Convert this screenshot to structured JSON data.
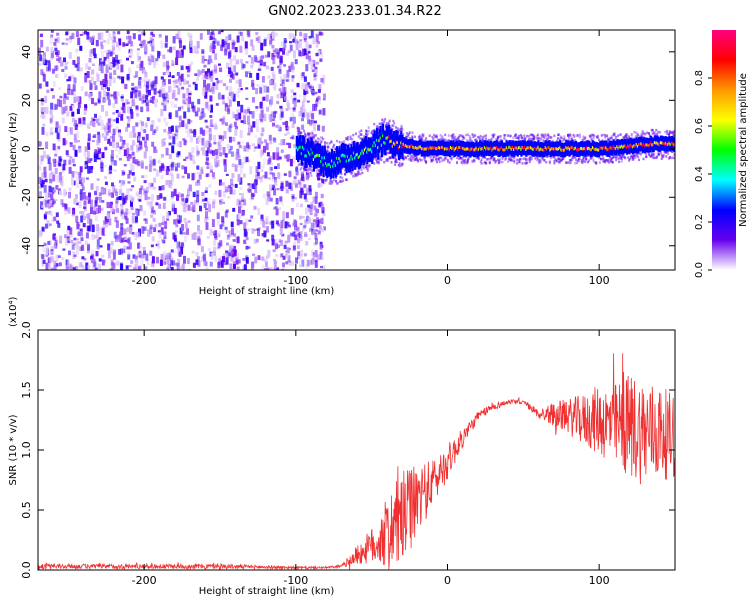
{
  "title": "GN02.2023.233.01.34.R22",
  "chart_data": [
    {
      "type": "heatmap",
      "xlabel": "Height of straight line (km)",
      "ylabel": "Frequency (Hz)",
      "xlim": [
        -270,
        150
      ],
      "ylim": [
        -50,
        49
      ],
      "x_ticks": [
        -200,
        -100,
        0,
        100
      ],
      "x_tick_labels": [
        "-200",
        "-100",
        "0",
        "100"
      ],
      "y_ticks": [
        -40,
        -20,
        0,
        20,
        40
      ],
      "y_tick_labels": [
        "-40",
        "-20",
        "0",
        "20",
        "40"
      ],
      "noise_region_x": [
        -270,
        -82
      ],
      "ridge": [
        {
          "x": -100,
          "y": 0
        },
        {
          "x": -90,
          "y": -2
        },
        {
          "x": -82,
          "y": -5
        },
        {
          "x": -75,
          "y": -6
        },
        {
          "x": -68,
          "y": -4
        },
        {
          "x": -60,
          "y": -2
        },
        {
          "x": -52,
          "y": 0
        },
        {
          "x": -45,
          "y": 3
        },
        {
          "x": -40,
          "y": 4
        },
        {
          "x": -35,
          "y": 2
        },
        {
          "x": -25,
          "y": 1
        },
        {
          "x": -15,
          "y": 0
        },
        {
          "x": 0,
          "y": 0
        },
        {
          "x": 30,
          "y": 0
        },
        {
          "x": 60,
          "y": 0
        },
        {
          "x": 80,
          "y": 0
        },
        {
          "x": 100,
          "y": 0
        },
        {
          "x": 120,
          "y": 1
        },
        {
          "x": 135,
          "y": 2
        },
        {
          "x": 150,
          "y": 2
        }
      ],
      "colorbar": {
        "label": "Normalized spectral amplitude",
        "range": [
          0,
          1
        ],
        "ticks": [
          0,
          0.2,
          0.4,
          0.6,
          0.8
        ],
        "tick_labels": [
          "0.0",
          "0.2",
          "0.4",
          "0.6",
          "0.8"
        ],
        "colormap": [
          "#ffffff",
          "#6600ee",
          "#0000ff",
          "#00ffff",
          "#00ff00",
          "#ffff00",
          "#ff9900",
          "#ff0000",
          "#ff0080"
        ]
      }
    },
    {
      "type": "line",
      "xlabel": "Height of straight line (km)",
      "ylabel": "SNR (10 * v/v)",
      "y_multiplier": "(x10⁴)",
      "xlim": [
        -270,
        150
      ],
      "ylim": [
        0,
        2.0
      ],
      "x_ticks": [
        -200,
        -100,
        0,
        100
      ],
      "x_tick_labels": [
        "-200",
        "-100",
        "0",
        "100"
      ],
      "y_ticks": [
        0,
        0.5,
        1.0,
        1.5,
        2.0
      ],
      "y_tick_labels": [
        "0.0",
        "0.5",
        "1.0",
        "1.5",
        "2.0"
      ],
      "color": "#f03030",
      "series": [
        {
          "x": [
            -270,
            -250,
            -200,
            -150,
            -100,
            -80,
            -70,
            -60,
            -50,
            -40,
            -30,
            -20,
            -10,
            0,
            10,
            20,
            30,
            40,
            50,
            60,
            70,
            80,
            90,
            100,
            110,
            120,
            130,
            140,
            150
          ],
          "center": [
            0.03,
            0.03,
            0.03,
            0.03,
            0.02,
            0.02,
            0.03,
            0.12,
            0.2,
            0.3,
            0.42,
            0.58,
            0.72,
            0.9,
            1.1,
            1.28,
            1.36,
            1.4,
            1.4,
            1.3,
            1.3,
            1.28,
            1.25,
            1.25,
            1.2,
            1.2,
            1.15,
            1.15,
            1.1
          ],
          "spread": [
            0.02,
            0.02,
            0.02,
            0.02,
            0.01,
            0.01,
            0.01,
            0.08,
            0.15,
            0.3,
            0.4,
            0.3,
            0.2,
            0.15,
            0.08,
            0.04,
            0.03,
            0.02,
            0.02,
            0.04,
            0.1,
            0.15,
            0.22,
            0.3,
            0.35,
            0.45,
            0.45,
            0.4,
            0.35
          ]
        }
      ]
    }
  ]
}
